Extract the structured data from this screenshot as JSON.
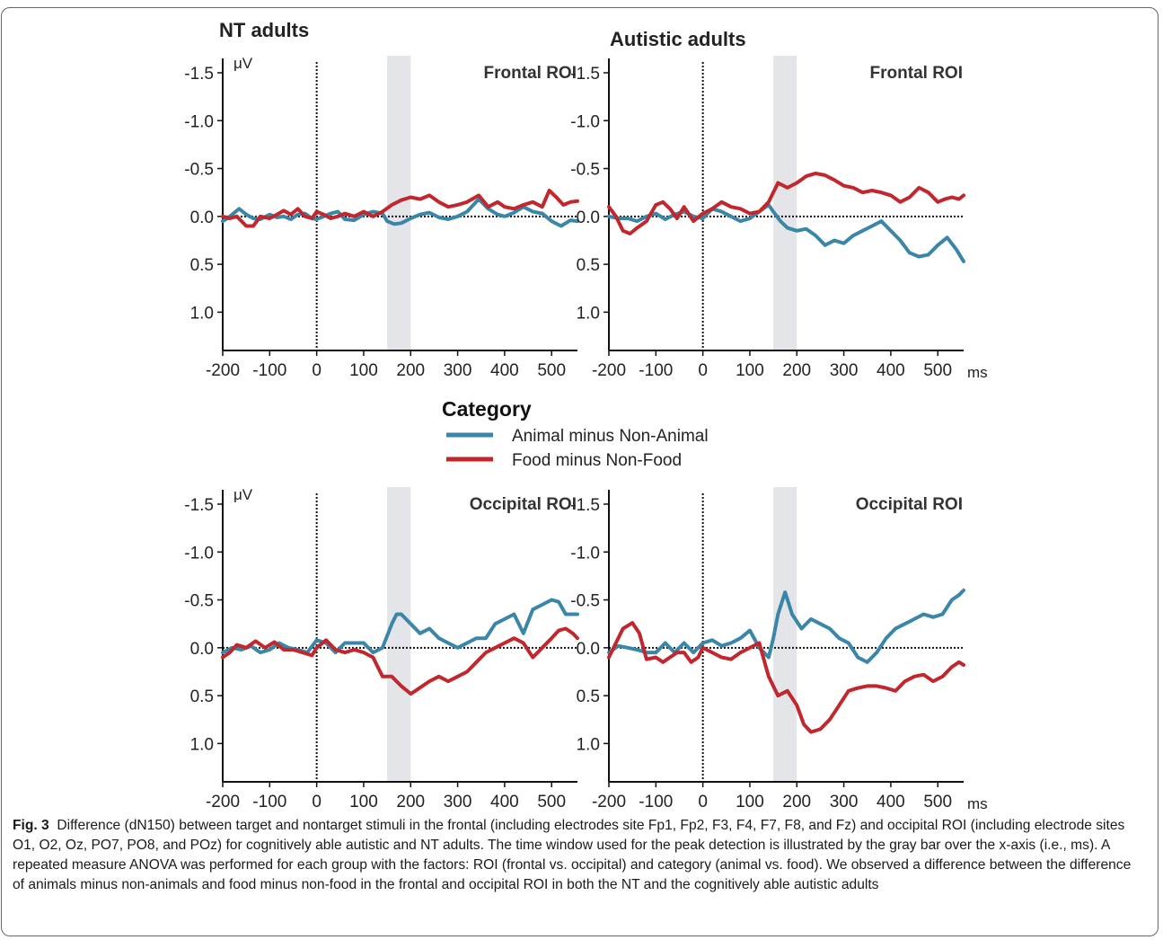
{
  "chart_data": {
    "type": "line",
    "group_titles": [
      "NT adults",
      "Autistic adults"
    ],
    "y_unit": "μV",
    "x_unit": "ms",
    "x_ticks": [
      -200,
      -100,
      0,
      100,
      200,
      300,
      400,
      500
    ],
    "y_ticks": [
      -1.5,
      -1.0,
      -0.5,
      0.0,
      0.5,
      1.0
    ],
    "y_tick_labels": [
      "-1.5",
      "-1.0",
      "-0.5",
      "0.0",
      "0.5",
      "1.0"
    ],
    "x_tick_labels": [
      "-200",
      "-100",
      "0",
      "100",
      "200",
      "300",
      "400",
      "500"
    ],
    "xlim": [
      -200,
      555
    ],
    "ylim": [
      1.4,
      -1.65
    ],
    "y_inverted": true,
    "highlight_window": [
      150,
      200
    ],
    "legend": {
      "title": "Category",
      "position": "center, between rows"
    },
    "series_styles": [
      {
        "name": "Animal minus Non-Animal",
        "color": "#3a86a9"
      },
      {
        "name": "Food minus Non-Food",
        "color": "#c1272d"
      }
    ],
    "panels": [
      {
        "group": "NT adults",
        "roi": "Frontal ROI",
        "show_y_unit": true,
        "show_x_unit": false,
        "series": [
          {
            "name": "Animal minus Non-Animal",
            "x": [
              -200,
              -190,
              -180,
              -165,
              -150,
              -135,
              -120,
              -100,
              -85,
              -70,
              -55,
              -40,
              -25,
              -10,
              0,
              15,
              30,
              45,
              60,
              80,
              100,
              120,
              140,
              150,
              165,
              180,
              200,
              220,
              240,
              260,
              280,
              300,
              320,
              345,
              365,
              385,
              400,
              420,
              440,
              460,
              480,
              500,
              520,
              540,
              555
            ],
            "y": [
              0.05,
              0.02,
              -0.02,
              -0.08,
              -0.02,
              0.02,
              0.03,
              -0.02,
              0.01,
              0.0,
              0.03,
              -0.02,
              -0.03,
              0.02,
              0.03,
              0.0,
              -0.03,
              -0.05,
              0.03,
              0.04,
              -0.02,
              -0.05,
              -0.03,
              0.05,
              0.08,
              0.07,
              0.02,
              -0.02,
              -0.04,
              0.01,
              0.03,
              0.0,
              -0.05,
              -0.18,
              -0.08,
              -0.02,
              0.0,
              -0.04,
              -0.1,
              -0.05,
              -0.03,
              0.05,
              0.1,
              0.04,
              0.05
            ]
          },
          {
            "name": "Food minus Non-Food",
            "x": [
              -200,
              -185,
              -170,
              -150,
              -135,
              -120,
              -100,
              -85,
              -70,
              -55,
              -40,
              -25,
              -10,
              0,
              15,
              30,
              45,
              60,
              80,
              100,
              120,
              140,
              160,
              180,
              200,
              220,
              240,
              260,
              280,
              300,
              320,
              345,
              365,
              385,
              400,
              420,
              440,
              460,
              480,
              495,
              510,
              525,
              540,
              555
            ],
            "y": [
              0.0,
              0.02,
              0.0,
              0.1,
              0.1,
              0.0,
              0.02,
              -0.02,
              -0.06,
              -0.02,
              -0.08,
              0.0,
              0.02,
              -0.05,
              -0.02,
              0.02,
              0.0,
              -0.03,
              0.0,
              -0.05,
              0.0,
              -0.05,
              -0.12,
              -0.17,
              -0.2,
              -0.18,
              -0.22,
              -0.15,
              -0.1,
              -0.12,
              -0.15,
              -0.22,
              -0.1,
              -0.15,
              -0.1,
              -0.08,
              -0.12,
              -0.15,
              -0.1,
              -0.27,
              -0.2,
              -0.12,
              -0.15,
              -0.16
            ]
          }
        ]
      },
      {
        "group": "Autistic adults",
        "roi": "Frontal ROI",
        "show_y_unit": false,
        "show_x_unit": true,
        "series": [
          {
            "name": "Animal minus Non-Animal",
            "x": [
              -200,
              -180,
              -160,
              -140,
              -120,
              -100,
              -80,
              -60,
              -40,
              -20,
              0,
              20,
              40,
              60,
              80,
              100,
              120,
              140,
              150,
              165,
              180,
              200,
              220,
              240,
              260,
              280,
              300,
              320,
              340,
              360,
              380,
              400,
              420,
              440,
              460,
              480,
              500,
              520,
              540,
              555
            ],
            "y": [
              0.0,
              0.02,
              0.02,
              0.05,
              0.0,
              -0.03,
              0.03,
              -0.02,
              -0.05,
              0.0,
              0.02,
              -0.08,
              -0.05,
              0.0,
              0.05,
              0.02,
              -0.05,
              -0.12,
              -0.05,
              0.05,
              0.12,
              0.15,
              0.13,
              0.2,
              0.3,
              0.25,
              0.28,
              0.2,
              0.15,
              0.1,
              0.05,
              0.15,
              0.25,
              0.38,
              0.42,
              0.4,
              0.3,
              0.22,
              0.35,
              0.47
            ]
          },
          {
            "name": "Food minus Non-Food",
            "x": [
              -200,
              -185,
              -170,
              -155,
              -140,
              -120,
              -100,
              -85,
              -70,
              -55,
              -40,
              -20,
              0,
              20,
              40,
              60,
              80,
              100,
              120,
              140,
              160,
              180,
              200,
              220,
              240,
              260,
              280,
              300,
              320,
              340,
              360,
              380,
              400,
              420,
              440,
              460,
              480,
              500,
              515,
              530,
              545,
              555
            ],
            "y": [
              -0.1,
              0.0,
              0.15,
              0.18,
              0.12,
              0.05,
              -0.12,
              -0.15,
              -0.08,
              0.02,
              -0.1,
              0.05,
              -0.03,
              -0.08,
              -0.15,
              -0.1,
              -0.08,
              -0.03,
              -0.05,
              -0.15,
              -0.35,
              -0.3,
              -0.35,
              -0.42,
              -0.45,
              -0.43,
              -0.38,
              -0.32,
              -0.3,
              -0.25,
              -0.27,
              -0.25,
              -0.22,
              -0.15,
              -0.2,
              -0.3,
              -0.25,
              -0.15,
              -0.18,
              -0.2,
              -0.18,
              -0.22
            ]
          }
        ]
      },
      {
        "group": "NT adults",
        "roi": "Occipital ROI",
        "show_y_unit": true,
        "show_x_unit": false,
        "series": [
          {
            "name": "Animal minus Non-Animal",
            "x": [
              -200,
              -180,
              -160,
              -140,
              -120,
              -100,
              -80,
              -60,
              -40,
              -20,
              0,
              20,
              40,
              60,
              80,
              100,
              120,
              140,
              160,
              170,
              180,
              200,
              220,
              240,
              260,
              280,
              300,
              320,
              340,
              360,
              380,
              400,
              420,
              440,
              460,
              480,
              500,
              515,
              530,
              545,
              555
            ],
            "y": [
              0.05,
              0.0,
              0.02,
              -0.02,
              0.05,
              0.02,
              -0.05,
              0.0,
              0.02,
              0.05,
              -0.08,
              -0.05,
              0.05,
              -0.05,
              -0.05,
              -0.05,
              0.05,
              0.0,
              -0.25,
              -0.35,
              -0.35,
              -0.25,
              -0.15,
              -0.2,
              -0.1,
              -0.05,
              0.0,
              -0.05,
              -0.1,
              -0.1,
              -0.25,
              -0.3,
              -0.35,
              -0.15,
              -0.4,
              -0.45,
              -0.5,
              -0.48,
              -0.35,
              -0.35,
              -0.35
            ]
          },
          {
            "name": "Food minus Non-Food",
            "x": [
              -200,
              -185,
              -170,
              -150,
              -130,
              -110,
              -90,
              -70,
              -50,
              -30,
              -10,
              0,
              20,
              40,
              60,
              80,
              100,
              120,
              140,
              160,
              180,
              200,
              210,
              225,
              240,
              260,
              280,
              300,
              320,
              340,
              360,
              380,
              400,
              420,
              440,
              460,
              480,
              500,
              515,
              530,
              545,
              555
            ],
            "y": [
              0.1,
              0.05,
              -0.03,
              0.0,
              -0.07,
              0.0,
              -0.06,
              0.02,
              0.02,
              0.05,
              0.08,
              0.0,
              -0.08,
              0.02,
              0.05,
              0.02,
              0.05,
              0.1,
              0.3,
              0.3,
              0.4,
              0.48,
              0.45,
              0.4,
              0.35,
              0.3,
              0.35,
              0.3,
              0.25,
              0.15,
              0.05,
              0.0,
              -0.05,
              -0.1,
              -0.05,
              0.1,
              0.0,
              -0.1,
              -0.18,
              -0.2,
              -0.15,
              -0.1
            ]
          }
        ]
      },
      {
        "group": "Autistic adults",
        "roi": "Occipital ROI",
        "show_y_unit": false,
        "show_x_unit": true,
        "series": [
          {
            "name": "Animal minus Non-Animal",
            "x": [
              -200,
              -180,
              -160,
              -140,
              -120,
              -100,
              -80,
              -60,
              -40,
              -20,
              0,
              20,
              40,
              60,
              80,
              100,
              120,
              140,
              150,
              160,
              175,
              190,
              210,
              230,
              250,
              270,
              290,
              310,
              330,
              350,
              370,
              390,
              410,
              430,
              450,
              470,
              490,
              510,
              530,
              545,
              555
            ],
            "y": [
              0.05,
              -0.02,
              0.0,
              0.02,
              0.05,
              0.05,
              -0.05,
              0.05,
              -0.05,
              0.05,
              -0.05,
              -0.08,
              -0.02,
              -0.05,
              -0.1,
              -0.18,
              0.0,
              0.1,
              -0.1,
              -0.35,
              -0.58,
              -0.35,
              -0.2,
              -0.3,
              -0.25,
              -0.2,
              -0.1,
              -0.05,
              0.1,
              0.15,
              0.05,
              -0.1,
              -0.2,
              -0.25,
              -0.3,
              -0.35,
              -0.32,
              -0.35,
              -0.5,
              -0.55,
              -0.6
            ]
          },
          {
            "name": "Food minus Non-Food",
            "x": [
              -200,
              -185,
              -170,
              -150,
              -135,
              -120,
              -100,
              -85,
              -70,
              -55,
              -40,
              -25,
              -10,
              0,
              20,
              40,
              60,
              80,
              100,
              120,
              140,
              160,
              180,
              200,
              215,
              230,
              250,
              270,
              290,
              310,
              330,
              350,
              370,
              390,
              410,
              430,
              450,
              470,
              490,
              510,
              530,
              545,
              555
            ],
            "y": [
              0.1,
              -0.05,
              -0.2,
              -0.26,
              -0.15,
              0.12,
              0.1,
              0.15,
              0.1,
              0.05,
              0.05,
              0.15,
              0.1,
              0.0,
              0.05,
              0.1,
              0.12,
              0.05,
              0.0,
              -0.05,
              0.3,
              0.5,
              0.45,
              0.6,
              0.8,
              0.88,
              0.85,
              0.75,
              0.6,
              0.45,
              0.42,
              0.4,
              0.4,
              0.42,
              0.45,
              0.35,
              0.3,
              0.28,
              0.35,
              0.3,
              0.2,
              0.15,
              0.18
            ]
          }
        ]
      }
    ]
  },
  "caption": {
    "label": "Fig. 3",
    "text": "Difference (dN150) between target and nontarget stimuli in the frontal (including electrodes site Fp1, Fp2, F3, F4, F7, F8, and Fz) and occipital ROI (including electrode sites O1, O2, Oz, PO7, PO8, and POz) for cognitively able autistic and NT adults. The time window used for the peak detection is illustrated by the gray bar over the x-axis (i.e., ms). A repeated measure ANOVA was performed for each group with the factors: ROI (frontal vs. occipital) and category (animal vs. food). We observed a difference between the difference of animals minus non-animals and food minus non-food in the frontal and occipital ROI in both the NT and the cognitively able autistic adults"
  }
}
